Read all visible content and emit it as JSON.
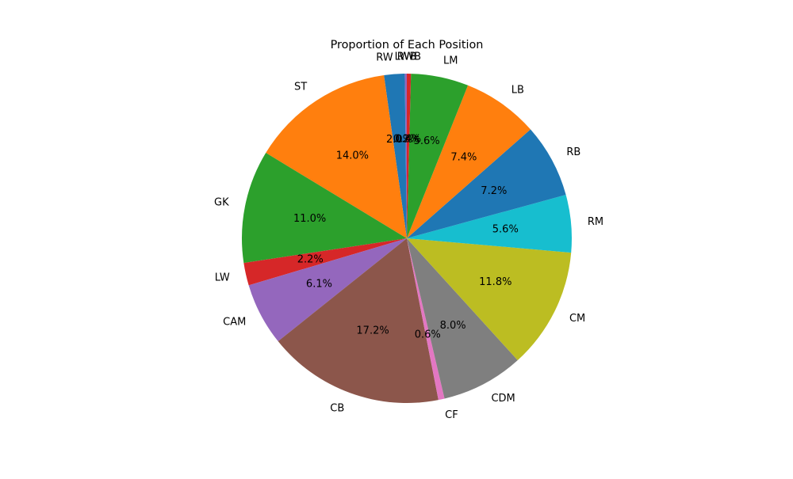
{
  "chart_data": {
    "type": "pie",
    "title": "Proportion of Each Position",
    "start_angle_deg": 90,
    "direction": "counterclockwise",
    "value_format": "percent_1dp",
    "slices": [
      {
        "label": "LWB",
        "value": 0.2,
        "pct_label": "0.2%",
        "color": "#9467bd"
      },
      {
        "label": "RW",
        "value": 2.0,
        "pct_label": "2.0%",
        "color": "#1f77b4"
      },
      {
        "label": "ST",
        "value": 14.0,
        "pct_label": "14.0%",
        "color": "#ff7f0e"
      },
      {
        "label": "GK",
        "value": 11.0,
        "pct_label": "11.0%",
        "color": "#2ca02c"
      },
      {
        "label": "LW",
        "value": 2.2,
        "pct_label": "2.2%",
        "color": "#d62728"
      },
      {
        "label": "CAM",
        "value": 6.1,
        "pct_label": "6.1%",
        "color": "#9467bd"
      },
      {
        "label": "CB",
        "value": 17.2,
        "pct_label": "17.2%",
        "color": "#8c564b"
      },
      {
        "label": "CF",
        "value": 0.6,
        "pct_label": "0.6%",
        "color": "#e377c2"
      },
      {
        "label": "CDM",
        "value": 8.0,
        "pct_label": "8.0%",
        "color": "#7f7f7f"
      },
      {
        "label": "CM",
        "value": 11.8,
        "pct_label": "11.8%",
        "color": "#bcbd22"
      },
      {
        "label": "RM",
        "value": 5.6,
        "pct_label": "5.6%",
        "color": "#17becf"
      },
      {
        "label": "RB",
        "value": 7.2,
        "pct_label": "7.2%",
        "color": "#1f77b4"
      },
      {
        "label": "LB",
        "value": 7.4,
        "pct_label": "7.4%",
        "color": "#ff7f0e"
      },
      {
        "label": "LM",
        "value": 5.6,
        "pct_label": "5.6%",
        "color": "#2ca02c"
      },
      {
        "label": "RWB",
        "value": 0.4,
        "pct_label": "0.4%",
        "color": "#d62728"
      }
    ]
  }
}
